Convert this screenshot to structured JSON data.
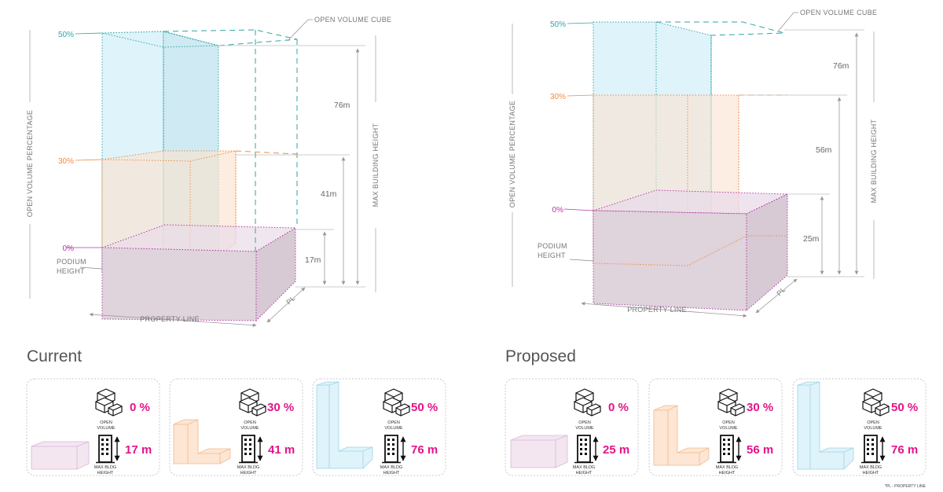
{
  "colors": {
    "cyan": "#2fa6a3",
    "orange": "#ef8c45",
    "magenta": "#b23aa6",
    "accent": "#e4138a",
    "podium": "#dfd3dc",
    "sky": "#dff3fb",
    "peach": "#fdebdc"
  },
  "labels": {
    "open_volume_cube": "OPEN VOLUME CUBE",
    "open_volume_percentage": "OPEN VOLUME PERCENTAGE",
    "max_building_height": "MAX BUILDING HEIGHT",
    "podium_line1": "PODIUM",
    "podium_line2": "HEIGHT",
    "property_line": "PROPERTY LINE",
    "pl": "PL",
    "icon_open_line1": "OPEN",
    "icon_open_line2": "VOLUME",
    "icon_max_line1": "MAX BLDG",
    "icon_max_line2": "HEIGHT",
    "footnote": "*PL - PROPERTY LINE"
  },
  "current": {
    "title": "Current",
    "pct_50": "50%",
    "pct_30": "30%",
    "pct_0": "0%",
    "dim_76": "76m",
    "dim_41": "41m",
    "dim_17": "17m",
    "cards": [
      {
        "percent": "0 %",
        "height": "17 m"
      },
      {
        "percent": "30 %",
        "height": "41 m"
      },
      {
        "percent": "50 %",
        "height": "76 m"
      }
    ]
  },
  "proposed": {
    "title": "Proposed",
    "pct_50": "50%",
    "pct_30": "30%",
    "pct_0": "0%",
    "dim_76": "76m",
    "dim_56": "56m",
    "dim_25": "25m",
    "cards": [
      {
        "percent": "0 %",
        "height": "25 m"
      },
      {
        "percent": "30 %",
        "height": "56 m"
      },
      {
        "percent": "50 %",
        "height": "76 m"
      }
    ]
  }
}
